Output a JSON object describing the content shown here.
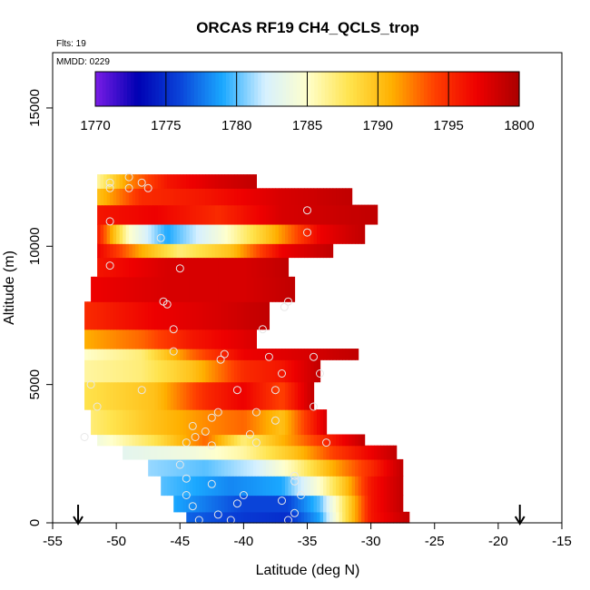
{
  "chart_data": {
    "type": "heatmap",
    "title": "ORCAS RF19 CH4_QCLS_trop",
    "xlabel": "Latitude (deg N)",
    "ylabel": "Altitude (m)",
    "xlim": [
      -55,
      -15
    ],
    "ylim": [
      0,
      17000
    ],
    "x_ticks": [
      "-55",
      "-50",
      "-45",
      "-40",
      "-35",
      "-30",
      "-25",
      "-20",
      "-15"
    ],
    "x_tick_values": [
      -55,
      -50,
      -45,
      -40,
      -35,
      -30,
      -25,
      -20,
      -15
    ],
    "y_ticks": [
      "0",
      "5000",
      "10000",
      "15000"
    ],
    "y_tick_values": [
      0,
      5000,
      10000,
      15000
    ],
    "annotations": {
      "flights": "Flts: 19",
      "date": "MMDD: 0229"
    },
    "colorbar": {
      "min": 1770,
      "max": 1800,
      "ticks": [
        "1770",
        "1775",
        "1780",
        "1785",
        "1790",
        "1795",
        "1800"
      ],
      "tick_values": [
        1770,
        1775,
        1780,
        1785,
        1790,
        1795,
        1800
      ],
      "colors": [
        "#7a1ce6",
        "#0000b3",
        "#0a44d9",
        "#1aa8ff",
        "#d6f0ff",
        "#ffffcc",
        "#ffe34d",
        "#ffb000",
        "#ff4000",
        "#ee0000",
        "#aa0000"
      ]
    },
    "arrows_latitude": [
      -53,
      -18.3
    ],
    "bands": [
      {
        "alt_min": 0,
        "alt_max": 400,
        "lat_min": -44.5,
        "lat_max": -27,
        "value_stops": [
          [
            -44.5,
            1777
          ],
          [
            -40,
            1775.5
          ],
          [
            -36.5,
            1775
          ],
          [
            -34,
            1779
          ],
          [
            -32,
            1788
          ],
          [
            -30,
            1796
          ],
          [
            -27,
            1799
          ]
        ]
      },
      {
        "alt_min": 400,
        "alt_max": 1000,
        "lat_min": -45.5,
        "lat_max": -27.5,
        "value_stops": [
          [
            -45.5,
            1779
          ],
          [
            -40,
            1776
          ],
          [
            -36.5,
            1776
          ],
          [
            -34,
            1780
          ],
          [
            -32,
            1788
          ],
          [
            -30,
            1796
          ],
          [
            -27.5,
            1799
          ]
        ]
      },
      {
        "alt_min": 1000,
        "alt_max": 1700,
        "lat_min": -46.5,
        "lat_max": -27.5,
        "value_stops": [
          [
            -46.5,
            1780
          ],
          [
            -41,
            1778
          ],
          [
            -37,
            1779
          ],
          [
            -34,
            1785
          ],
          [
            -32,
            1790
          ],
          [
            -30,
            1796
          ],
          [
            -27.5,
            1799
          ]
        ]
      },
      {
        "alt_min": 1700,
        "alt_max": 2300,
        "lat_min": -47.5,
        "lat_max": -27.5,
        "value_stops": [
          [
            -47.5,
            1781
          ],
          [
            -43,
            1780
          ],
          [
            -39,
            1782
          ],
          [
            -36,
            1786
          ],
          [
            -33,
            1791
          ],
          [
            -30,
            1795
          ],
          [
            -27.5,
            1799
          ]
        ]
      },
      {
        "alt_min": 2300,
        "alt_max": 2800,
        "lat_min": -49.5,
        "lat_max": -28,
        "value_stops": [
          [
            -49.5,
            1783
          ],
          [
            -44,
            1784
          ],
          [
            -40,
            1786
          ],
          [
            -36,
            1790
          ],
          [
            -33,
            1794
          ],
          [
            -28,
            1799
          ]
        ]
      },
      {
        "alt_min": 2800,
        "alt_max": 3200,
        "lat_min": -51.5,
        "lat_max": -30.5,
        "value_stops": [
          [
            -51.5,
            1784
          ],
          [
            -47,
            1788
          ],
          [
            -43,
            1793
          ],
          [
            -40,
            1787
          ],
          [
            -36,
            1792
          ],
          [
            -30.5,
            1799
          ]
        ]
      },
      {
        "alt_min": 3200,
        "alt_max": 4100,
        "lat_min": -52,
        "lat_max": -33.5,
        "value_stops": [
          [
            -52,
            1787
          ],
          [
            -47,
            1790
          ],
          [
            -43,
            1792
          ],
          [
            -40,
            1793
          ],
          [
            -37,
            1790
          ],
          [
            -33.5,
            1798
          ]
        ]
      },
      {
        "alt_min": 4100,
        "alt_max": 5100,
        "lat_min": -52.5,
        "lat_max": -34.5,
        "value_stops": [
          [
            -52.5,
            1788
          ],
          [
            -47,
            1790
          ],
          [
            -43,
            1795
          ],
          [
            -40,
            1797
          ],
          [
            -37,
            1794
          ],
          [
            -34.5,
            1799
          ]
        ]
      },
      {
        "alt_min": 5100,
        "alt_max": 5900,
        "lat_min": -52.5,
        "lat_max": -34,
        "value_stops": [
          [
            -52.5,
            1786
          ],
          [
            -48,
            1787
          ],
          [
            -44,
            1790
          ],
          [
            -40,
            1795
          ],
          [
            -37,
            1796
          ],
          [
            -34,
            1799
          ]
        ]
      },
      {
        "alt_min": 5900,
        "alt_max": 6300,
        "lat_min": -52.5,
        "lat_max": -31,
        "value_stops": [
          [
            -52.5,
            1785
          ],
          [
            -48,
            1787
          ],
          [
            -44,
            1793
          ],
          [
            -40,
            1797
          ],
          [
            -35,
            1798
          ],
          [
            -31,
            1799
          ]
        ]
      },
      {
        "alt_min": 6300,
        "alt_max": 7000,
        "lat_min": -52.5,
        "lat_max": -39,
        "value_stops": [
          [
            -52.5,
            1791
          ],
          [
            -48,
            1793
          ],
          [
            -44,
            1796
          ],
          [
            -39,
            1798
          ]
        ]
      },
      {
        "alt_min": 7000,
        "alt_max": 8000,
        "lat_min": -52.5,
        "lat_max": -38,
        "value_stops": [
          [
            -52.5,
            1795
          ],
          [
            -47,
            1797
          ],
          [
            -42,
            1798
          ],
          [
            -38,
            1799
          ]
        ]
      },
      {
        "alt_min": 8000,
        "alt_max": 8900,
        "lat_min": -52,
        "lat_max": -36,
        "value_stops": [
          [
            -52,
            1797
          ],
          [
            -46,
            1798
          ],
          [
            -40,
            1798
          ],
          [
            -36,
            1799
          ]
        ]
      },
      {
        "alt_min": 8900,
        "alt_max": 9600,
        "lat_min": -51.5,
        "lat_max": -36.5,
        "value_stops": [
          [
            -51.5,
            1796
          ],
          [
            -46,
            1798
          ],
          [
            -40,
            1798
          ],
          [
            -36.5,
            1799
          ]
        ]
      },
      {
        "alt_min": 9600,
        "alt_max": 10100,
        "lat_min": -51.5,
        "lat_max": -33,
        "value_stops": [
          [
            -51.5,
            1797
          ],
          [
            -48,
            1791
          ],
          [
            -45,
            1787
          ],
          [
            -41,
            1790
          ],
          [
            -37,
            1797
          ],
          [
            -33,
            1799
          ]
        ]
      },
      {
        "alt_min": 10100,
        "alt_max": 10800,
        "lat_min": -51.5,
        "lat_max": -30.5,
        "value_stops": [
          [
            -51.5,
            1796
          ],
          [
            -49,
            1785
          ],
          [
            -46,
            1779
          ],
          [
            -42,
            1784
          ],
          [
            -38,
            1790
          ],
          [
            -34,
            1797
          ],
          [
            -30.5,
            1799
          ]
        ]
      },
      {
        "alt_min": 10800,
        "alt_max": 11500,
        "lat_min": -51.5,
        "lat_max": -29.5,
        "value_stops": [
          [
            -51.5,
            1796
          ],
          [
            -47,
            1797
          ],
          [
            -42,
            1795
          ],
          [
            -37,
            1798
          ],
          [
            -29.5,
            1799
          ]
        ]
      },
      {
        "alt_min": 11500,
        "alt_max": 12100,
        "lat_min": -51.5,
        "lat_max": -31.5,
        "value_stops": [
          [
            -51.5,
            1790
          ],
          [
            -48,
            1795
          ],
          [
            -43,
            1796
          ],
          [
            -37,
            1798
          ],
          [
            -31.5,
            1799
          ]
        ]
      },
      {
        "alt_min": 12100,
        "alt_max": 12600,
        "lat_min": -51.5,
        "lat_max": -39,
        "value_stops": [
          [
            -51.5,
            1786
          ],
          [
            -49,
            1792
          ],
          [
            -46,
            1796
          ],
          [
            -42,
            1798
          ],
          [
            -39,
            1799
          ]
        ]
      }
    ],
    "points": [
      [
        -43.5,
        100
      ],
      [
        -41,
        100
      ],
      [
        -36.5,
        100
      ],
      [
        -42,
        300
      ],
      [
        -36,
        350
      ],
      [
        -44,
        600
      ],
      [
        -40.5,
        700
      ],
      [
        -37,
        800
      ],
      [
        -44.5,
        1000
      ],
      [
        -40,
        1000
      ],
      [
        -35.5,
        1000
      ],
      [
        -42.5,
        1400
      ],
      [
        -36,
        1500
      ],
      [
        -44.5,
        1600
      ],
      [
        -36,
        1700
      ],
      [
        -45,
        2100
      ],
      [
        -44.5,
        2900
      ],
      [
        -42.5,
        2800
      ],
      [
        -39,
        2900
      ],
      [
        -33.5,
        2900
      ],
      [
        -43.8,
        3100
      ],
      [
        -43,
        3300
      ],
      [
        -39.5,
        3200
      ],
      [
        -52.5,
        3100
      ],
      [
        -44,
        3500
      ],
      [
        -42.5,
        3800
      ],
      [
        -37.5,
        3700
      ],
      [
        -42,
        4000
      ],
      [
        -39,
        4000
      ],
      [
        -34.5,
        4200
      ],
      [
        -51.5,
        4200
      ],
      [
        -52,
        5000
      ],
      [
        -48,
        4800
      ],
      [
        -40.5,
        4800
      ],
      [
        -37.5,
        4800
      ],
      [
        -34,
        5400
      ],
      [
        -37,
        5400
      ],
      [
        -41.8,
        5900
      ],
      [
        -38,
        6000
      ],
      [
        -34.5,
        6000
      ],
      [
        -45.5,
        6200
      ],
      [
        -41.5,
        6100
      ],
      [
        -38.5,
        7000
      ],
      [
        -45.5,
        7000
      ],
      [
        -36.5,
        8000
      ],
      [
        -36.8,
        7800
      ],
      [
        -46,
        7900
      ],
      [
        -46.3,
        8000
      ],
      [
        -45,
        9200
      ],
      [
        -50.5,
        9300
      ],
      [
        -46.5,
        10300
      ],
      [
        -35,
        10500
      ],
      [
        -50.5,
        10900
      ],
      [
        -35,
        11300
      ],
      [
        -50.5,
        12100
      ],
      [
        -49,
        12100
      ],
      [
        -47.5,
        12100
      ],
      [
        -48,
        12300
      ],
      [
        -50.5,
        12300
      ],
      [
        -49,
        12500
      ]
    ]
  }
}
